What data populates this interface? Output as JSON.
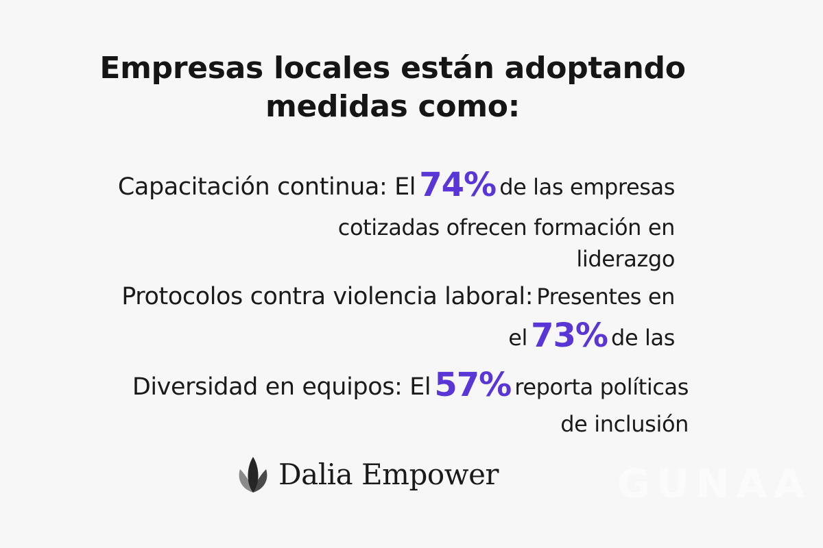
{
  "title": {
    "line1": "Empresas locales están adoptando",
    "line2": "medidas como:"
  },
  "stats": [
    {
      "lead": "Capacitación continua: El",
      "pct": "74%",
      "after": "de las empresas",
      "line2": "cotizadas ofrecen formación en",
      "line3": "liderazgo"
    },
    {
      "lead": "Protocolos contra violencia laboral:",
      "after": "Presentes en",
      "before2": "el",
      "pct": "73%",
      "after2": "de las"
    },
    {
      "lead": "Diversidad en equipos: El",
      "pct": "57%",
      "after": "reporta políticas",
      "line2": "de inclusión"
    }
  ],
  "brand": {
    "name": "Dalia Empower",
    "icon": "lotus-leaves-icon"
  },
  "watermark": "GUNAA",
  "colors": {
    "background": "#f7f7f7",
    "text": "#141414",
    "accent": "#5b36d6"
  }
}
